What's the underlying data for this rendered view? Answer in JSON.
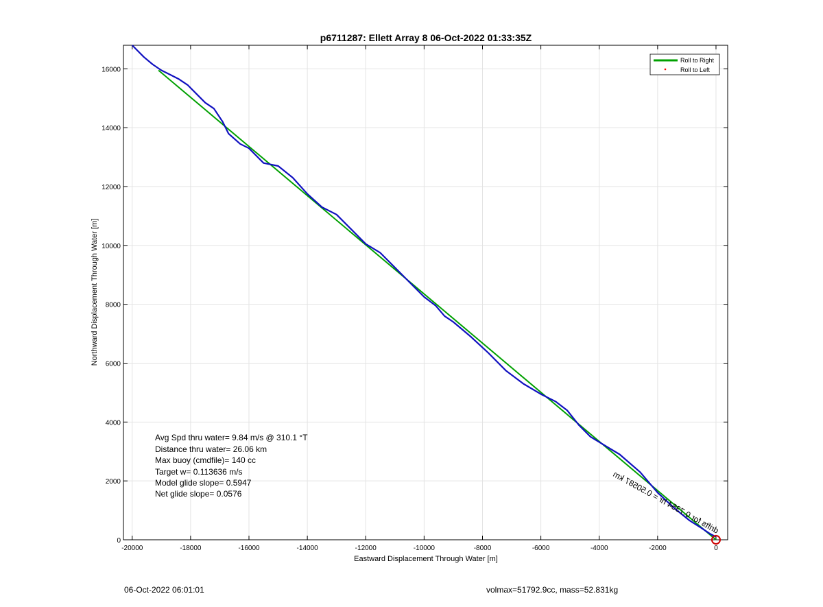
{
  "chart_data": {
    "type": "line",
    "title": "p6711287: Ellett Array 8 06-Oct-2022 01:33:35Z",
    "xlabel": "Eastward Displacement Through Water [m]",
    "ylabel": "Northward Displacement Through Water [m]",
    "xlim": [
      -20300,
      400
    ],
    "ylim": [
      0,
      16800
    ],
    "xticks": [
      -20000,
      -18000,
      -16000,
      -14000,
      -12000,
      -10000,
      -8000,
      -6000,
      -4000,
      -2000,
      0
    ],
    "yticks": [
      0,
      2000,
      4000,
      6000,
      8000,
      10000,
      12000,
      14000,
      16000
    ],
    "grid": true,
    "legend_position": "top-right",
    "legend": [
      {
        "label": "Roll to Right",
        "color": "#00a000",
        "style": "line"
      },
      {
        "label": "Roll to Left",
        "color": "#ff0000",
        "style": "dot"
      }
    ],
    "series": [
      {
        "name": "Roll to Right",
        "color": "#00a000",
        "x": [
          0,
          -19100
        ],
        "y": [
          0,
          15950
        ]
      },
      {
        "color": "#1010c0",
        "x": [
          0,
          -200,
          -500,
          -900,
          -1400,
          -2000,
          -2600,
          -3300,
          -3800,
          -4300,
          -4700,
          -5100,
          -5500,
          -6000,
          -6600,
          -7200,
          -7800,
          -8400,
          -9000,
          -9300,
          -9600,
          -10000,
          -10500,
          -11000,
          -11500,
          -12000,
          -12500,
          -13000,
          -13500,
          -14000,
          -14500,
          -15000,
          -15500,
          -16000,
          -16300,
          -16700,
          -16900,
          -17200,
          -17500,
          -17800,
          -18100,
          -18400,
          -18700,
          -19000,
          -19300,
          -19600,
          -19800,
          -20000
        ],
        "y": [
          100,
          200,
          400,
          650,
          1050,
          1600,
          2300,
          2900,
          3200,
          3500,
          3900,
          4400,
          4700,
          4950,
          5300,
          5750,
          6350,
          6900,
          7400,
          7600,
          7950,
          8250,
          8750,
          9250,
          9750,
          10050,
          10550,
          11050,
          11300,
          11750,
          12300,
          12700,
          12800,
          13300,
          13450,
          13800,
          14200,
          14650,
          14850,
          15150,
          15450,
          15650,
          15800,
          15950,
          16150,
          16400,
          16600,
          16800
        ]
      }
    ],
    "start_marker": {
      "x": 0,
      "y": 0,
      "color": "#cc0000"
    },
    "annotations": [
      "Avg Spd thru water=  9.84 m/s @ 310.1 °T",
      "Distance thru water= 26.06 km",
      "Max buoy (cmdfile)= 140 cc",
      "Target w= 0.113636 m/s",
      "Model glide slope= 0.5947",
      "Net glide slope= 0.0576"
    ],
    "path_label_visible": "drifts for 0.7354 hr = 0.50587 km"
  },
  "footer": {
    "timestamp": "06-Oct-2022 06:01:01",
    "stats": "volmax=51792.9cc, mass=52.831kg"
  }
}
